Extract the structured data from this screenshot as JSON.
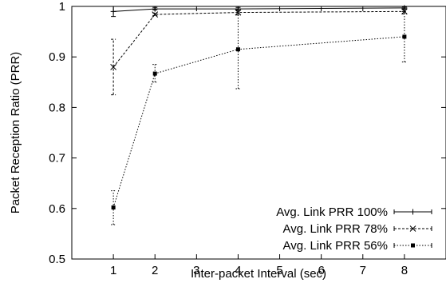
{
  "chart_data": {
    "type": "line",
    "title": "",
    "xlabel": "Inter-packet Interval (sec)",
    "ylabel": "Packet Reception Ratio (PRR)",
    "xlim": [
      0,
      9
    ],
    "ylim": [
      0.5,
      1.0
    ],
    "x_ticks": [
      "1",
      "2",
      "3",
      "4",
      "5",
      "6",
      "7",
      "8"
    ],
    "y_ticks": [
      "0.5",
      "0.6",
      "0.7",
      "0.8",
      "0.9",
      "1"
    ],
    "grid": false,
    "legend_position": "bottom-right",
    "series": [
      {
        "name": "Avg. Link PRR 100%",
        "marker": "plus",
        "dash": "solid",
        "x": [
          1,
          2,
          4,
          8
        ],
        "y": [
          0.99,
          0.995,
          0.995,
          0.997
        ],
        "err_low": [
          0.98,
          0.993,
          0.992,
          0.995
        ],
        "err_high": [
          1.0,
          0.998,
          0.998,
          0.999
        ]
      },
      {
        "name": "Avg. Link PRR 78%",
        "marker": "cross",
        "dash": "dashed",
        "x": [
          1,
          2,
          4,
          8
        ],
        "y": [
          0.88,
          0.984,
          0.988,
          0.99
        ],
        "err_low": [
          0.825,
          0.982,
          0.983,
          0.985
        ],
        "err_high": [
          0.935,
          0.987,
          0.993,
          0.994
        ]
      },
      {
        "name": "Avg. Link PRR 56%",
        "marker": "square",
        "dash": "dotted",
        "x": [
          1,
          2,
          4,
          8
        ],
        "y": [
          0.602,
          0.867,
          0.915,
          0.94
        ],
        "err_low": [
          0.568,
          0.85,
          0.837,
          0.89
        ],
        "err_high": [
          0.635,
          0.885,
          0.995,
          0.99
        ]
      }
    ]
  }
}
